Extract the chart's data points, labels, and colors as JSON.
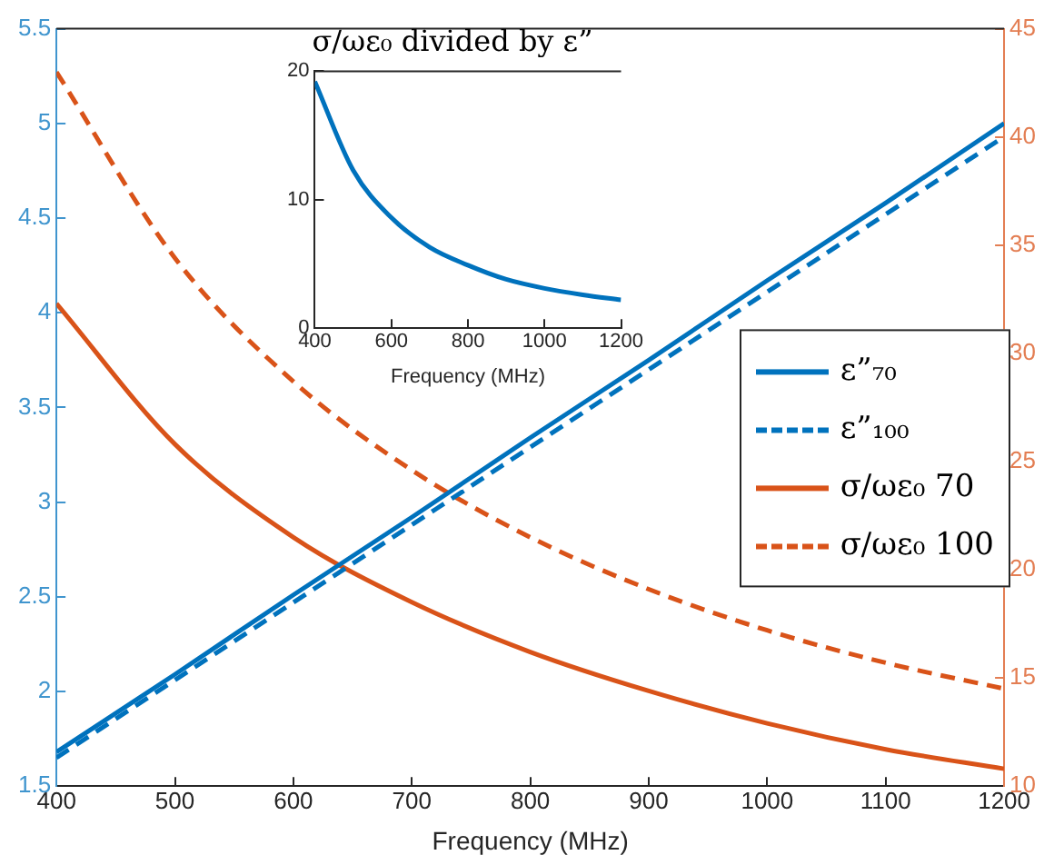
{
  "chart_data": [
    {
      "type": "line",
      "xlabel": "Frequency (MHz)",
      "x": [
        400,
        500,
        600,
        700,
        800,
        900,
        1000,
        1100,
        1200
      ],
      "xlim": [
        400,
        1200
      ],
      "xticks": [
        400,
        500,
        600,
        700,
        800,
        900,
        1000,
        1100,
        1200
      ],
      "ylim": [
        1.5,
        5.5
      ],
      "yticks": [
        1.5,
        2,
        2.5,
        3,
        3.5,
        4,
        4.5,
        5,
        5.5
      ],
      "y2lim": [
        10,
        45
      ],
      "y2ticks": [
        10,
        15,
        20,
        25,
        30,
        35,
        40,
        45
      ],
      "grid": false,
      "marker": "none",
      "legend": "right",
      "series": [
        {
          "name": "ε”₇₀",
          "color": "#0072bd",
          "line_style": "solid",
          "values": [
            1.68,
            2.09,
            2.51,
            2.92,
            3.34,
            3.75,
            4.17,
            4.58,
            5.0
          ]
        },
        {
          "name": "ε”₁₀₀",
          "color": "#0072bd",
          "line_style": "dashed",
          "values": [
            1.65,
            2.06,
            2.47,
            2.88,
            3.29,
            3.7,
            4.11,
            4.52,
            4.93
          ]
        },
        {
          "name": "σ/ωε₀ 70",
          "color": "#d95319",
          "line_style": "solid",
          "axis": "y2",
          "values": [
            32.3,
            25.8,
            21.5,
            18.5,
            16.2,
            14.4,
            12.9,
            11.7,
            10.8
          ]
        },
        {
          "name": "σ/ωε₀ 100",
          "color": "#d95319",
          "line_style": "dashed",
          "axis": "y2",
          "values": [
            43.0,
            34.4,
            28.7,
            24.6,
            21.5,
            19.1,
            17.2,
            15.7,
            14.5
          ]
        }
      ]
    },
    {
      "type": "line",
      "title": "σ/ωε₀ divided by ε”",
      "xlabel": "Frequency (MHz)",
      "x": [
        400,
        500,
        600,
        700,
        800,
        900,
        1000,
        1100,
        1200
      ],
      "xlim": [
        400,
        1200
      ],
      "xticks": [
        400,
        600,
        800,
        1000,
        1200
      ],
      "ylim": [
        0,
        20
      ],
      "yticks": [
        0,
        10,
        20
      ],
      "grid": false,
      "marker": "none",
      "series": [
        {
          "color": "#0072bd",
          "line_style": "solid",
          "values": [
            19.2,
            12.3,
            8.6,
            6.3,
            4.9,
            3.8,
            3.1,
            2.6,
            2.2
          ]
        }
      ]
    }
  ]
}
